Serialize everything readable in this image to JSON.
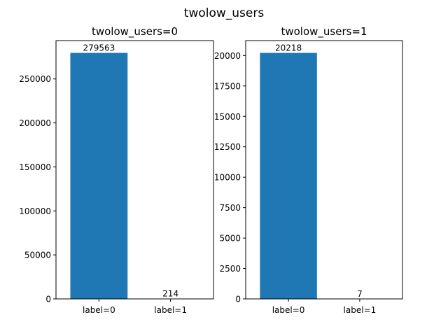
{
  "figure": {
    "suptitle": "twolow_users"
  },
  "chart_data": [
    {
      "type": "bar",
      "title": "twolow_users=0",
      "categories": [
        "label=0",
        "label=1"
      ],
      "values": [
        279563,
        214
      ],
      "value_labels": [
        "279563",
        "214"
      ],
      "ylim": [
        0,
        293541
      ],
      "yticks": [
        0,
        50000,
        100000,
        150000,
        200000,
        250000
      ],
      "ytick_labels": [
        "0",
        "50000",
        "100000",
        "150000",
        "200000",
        "250000"
      ],
      "bar_color": "#1f77b4",
      "grid": false,
      "legend": "none"
    },
    {
      "type": "bar",
      "title": "twolow_users=1",
      "categories": [
        "label=0",
        "label=1"
      ],
      "values": [
        20218,
        7
      ],
      "value_labels": [
        "20218",
        "7"
      ],
      "ylim": [
        0,
        21229
      ],
      "yticks": [
        0,
        2500,
        5000,
        7500,
        10000,
        12500,
        15000,
        17500,
        20000
      ],
      "ytick_labels": [
        "0",
        "2500",
        "5000",
        "7500",
        "10000",
        "12500",
        "15000",
        "17500",
        "20000"
      ],
      "bar_color": "#1f77b4",
      "grid": false,
      "legend": "none"
    }
  ]
}
